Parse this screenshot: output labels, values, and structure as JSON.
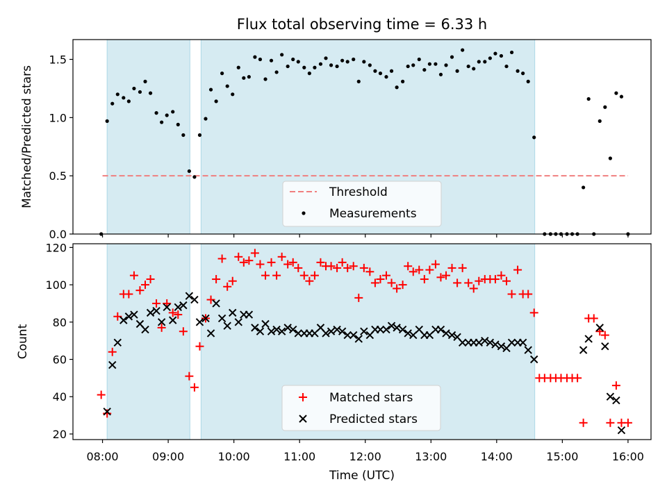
{
  "chart_data": [
    {
      "type": "scatter",
      "title": "Flux total observing time = 6.33 h",
      "ylabel": "Matched/Predicted stars",
      "xlabel": "",
      "xlim": [
        7.55,
        16.35
      ],
      "ylim": [
        0,
        1.67
      ],
      "xticks": [
        8,
        9,
        10,
        11,
        12,
        13,
        14,
        15,
        16
      ],
      "yticks": [
        0.0,
        0.5,
        1.0,
        1.5
      ],
      "ytick_labels": [
        "0.0",
        "0.5",
        "1.0",
        "1.5"
      ],
      "shaded_intervals": [
        [
          8.07,
          9.33
        ],
        [
          9.5,
          14.58
        ]
      ],
      "threshold": {
        "label": "Threshold",
        "value": 0.5,
        "x_range": [
          8.0,
          16.0
        ],
        "color": "#f07f7f"
      },
      "series": [
        {
          "name": "Measurements",
          "color": "#000000",
          "x": [
            7.98,
            8.07,
            8.15,
            8.23,
            8.32,
            8.4,
            8.48,
            8.57,
            8.65,
            8.73,
            8.82,
            8.9,
            8.98,
            9.07,
            9.15,
            9.23,
            9.32,
            9.4,
            9.48,
            9.57,
            9.65,
            9.73,
            9.82,
            9.9,
            9.98,
            10.07,
            10.15,
            10.23,
            10.32,
            10.4,
            10.48,
            10.57,
            10.65,
            10.73,
            10.82,
            10.9,
            10.98,
            11.07,
            11.15,
            11.23,
            11.32,
            11.4,
            11.48,
            11.57,
            11.65,
            11.73,
            11.82,
            11.9,
            11.98,
            12.07,
            12.15,
            12.23,
            12.32,
            12.4,
            12.48,
            12.57,
            12.65,
            12.73,
            12.82,
            12.9,
            12.98,
            13.07,
            13.15,
            13.23,
            13.32,
            13.4,
            13.48,
            13.57,
            13.65,
            13.73,
            13.82,
            13.9,
            13.98,
            14.07,
            14.15,
            14.23,
            14.32,
            14.4,
            14.48,
            14.57,
            14.73,
            14.82,
            14.9,
            14.98,
            15.07,
            15.15,
            15.23,
            15.32,
            15.4,
            15.48,
            15.57,
            15.65,
            15.73,
            15.82,
            15.9,
            16.0
          ],
          "values": [
            0.0,
            0.97,
            1.12,
            1.2,
            1.17,
            1.14,
            1.25,
            1.22,
            1.31,
            1.21,
            1.04,
            0.96,
            1.02,
            1.05,
            0.94,
            0.85,
            0.54,
            0.49,
            0.85,
            0.99,
            1.24,
            1.14,
            1.38,
            1.27,
            1.2,
            1.43,
            1.34,
            1.35,
            1.52,
            1.5,
            1.33,
            1.49,
            1.39,
            1.54,
            1.44,
            1.5,
            1.48,
            1.43,
            1.38,
            1.43,
            1.46,
            1.51,
            1.45,
            1.44,
            1.49,
            1.48,
            1.5,
            1.31,
            1.48,
            1.45,
            1.4,
            1.38,
            1.35,
            1.4,
            1.26,
            1.31,
            1.44,
            1.45,
            1.5,
            1.41,
            1.46,
            1.46,
            1.37,
            1.45,
            1.52,
            1.4,
            1.58,
            1.44,
            1.42,
            1.48,
            1.48,
            1.51,
            1.55,
            1.53,
            1.44,
            1.56,
            1.4,
            1.38,
            1.31,
            0.83,
            0.0,
            0.0,
            0.0,
            0.0,
            0.0,
            0.0,
            0.0,
            0.4,
            1.16,
            0.0,
            0.97,
            1.09,
            0.65,
            1.21,
            1.18,
            0.0
          ]
        }
      ],
      "legend": [
        "Threshold",
        "Measurements"
      ],
      "legend_position": "bottom-center"
    },
    {
      "type": "scatter",
      "title": "",
      "ylabel": "Count",
      "xlabel": "Time (UTC)",
      "xlim": [
        7.55,
        16.35
      ],
      "ylim": [
        17,
        122
      ],
      "xticks": [
        8,
        9,
        10,
        11,
        12,
        13,
        14,
        15,
        16
      ],
      "xtick_labels": [
        "08:00",
        "09:00",
        "10:00",
        "11:00",
        "12:00",
        "13:00",
        "14:00",
        "15:00",
        "16:00"
      ],
      "yticks": [
        20,
        40,
        60,
        80,
        100,
        120
      ],
      "ytick_labels": [
        "20",
        "40",
        "60",
        "80",
        "100",
        "120"
      ],
      "shaded_intervals": [
        [
          8.07,
          9.33
        ],
        [
          9.5,
          14.58
        ]
      ],
      "series": [
        {
          "name": "Matched stars",
          "marker": "+",
          "color": "#ff0000",
          "x": [
            7.98,
            8.07,
            8.15,
            8.23,
            8.32,
            8.4,
            8.48,
            8.57,
            8.65,
            8.73,
            8.82,
            8.9,
            8.98,
            9.07,
            9.15,
            9.23,
            9.32,
            9.4,
            9.48,
            9.57,
            9.65,
            9.73,
            9.82,
            9.9,
            9.98,
            10.07,
            10.15,
            10.23,
            10.32,
            10.4,
            10.48,
            10.57,
            10.65,
            10.73,
            10.82,
            10.9,
            10.98,
            11.07,
            11.15,
            11.23,
            11.32,
            11.4,
            11.48,
            11.57,
            11.65,
            11.73,
            11.82,
            11.9,
            11.98,
            12.07,
            12.15,
            12.23,
            12.32,
            12.4,
            12.48,
            12.57,
            12.65,
            12.73,
            12.82,
            12.9,
            12.98,
            13.07,
            13.15,
            13.23,
            13.32,
            13.4,
            13.48,
            13.57,
            13.65,
            13.73,
            13.82,
            13.9,
            13.98,
            14.07,
            14.15,
            14.23,
            14.32,
            14.4,
            14.48,
            14.57,
            14.65,
            14.73,
            14.82,
            14.9,
            14.98,
            15.07,
            15.15,
            15.23,
            15.32,
            15.4,
            15.48,
            15.57,
            15.65,
            15.73,
            15.82,
            15.9,
            16.0
          ],
          "values": [
            41,
            31,
            64,
            83,
            95,
            95,
            105,
            97,
            100,
            103,
            90,
            77,
            90,
            85,
            84,
            75,
            51,
            45,
            67,
            82,
            92,
            103,
            114,
            99,
            102,
            115,
            112,
            113,
            117,
            111,
            105,
            112,
            105,
            115,
            111,
            112,
            109,
            105,
            102,
            105,
            112,
            110,
            110,
            109,
            112,
            109,
            110,
            93,
            109,
            107,
            101,
            103,
            105,
            101,
            98,
            100,
            110,
            107,
            108,
            103,
            108,
            111,
            104,
            105,
            109,
            101,
            109,
            101,
            98,
            102,
            103,
            103,
            103,
            105,
            102,
            95,
            108,
            95,
            95,
            85,
            50,
            50,
            50,
            50,
            50,
            50,
            50,
            50,
            26,
            82,
            82,
            75,
            73,
            26,
            46,
            26,
            26
          ]
        },
        {
          "name": "Predicted stars",
          "marker": "x",
          "color": "#000000",
          "x": [
            8.07,
            8.15,
            8.23,
            8.32,
            8.4,
            8.48,
            8.57,
            8.65,
            8.73,
            8.82,
            8.9,
            8.98,
            9.07,
            9.15,
            9.23,
            9.32,
            9.4,
            9.48,
            9.57,
            9.65,
            9.73,
            9.82,
            9.9,
            9.98,
            10.07,
            10.15,
            10.23,
            10.32,
            10.4,
            10.48,
            10.57,
            10.65,
            10.73,
            10.82,
            10.9,
            10.98,
            11.07,
            11.15,
            11.23,
            11.32,
            11.4,
            11.48,
            11.57,
            11.65,
            11.73,
            11.82,
            11.9,
            11.98,
            12.07,
            12.15,
            12.23,
            12.32,
            12.4,
            12.48,
            12.57,
            12.65,
            12.73,
            12.82,
            12.9,
            12.98,
            13.07,
            13.15,
            13.23,
            13.32,
            13.4,
            13.48,
            13.57,
            13.65,
            13.73,
            13.82,
            13.9,
            13.98,
            14.07,
            14.15,
            14.23,
            14.32,
            14.4,
            14.48,
            14.57,
            15.32,
            15.4,
            15.57,
            15.65,
            15.73,
            15.82,
            15.9
          ],
          "values": [
            32,
            57,
            69,
            81,
            83,
            84,
            79,
            76,
            85,
            86,
            80,
            88,
            81,
            88,
            89,
            94,
            92,
            80,
            82,
            74,
            90,
            82,
            78,
            85,
            80,
            84,
            84,
            77,
            75,
            79,
            75,
            76,
            75,
            77,
            76,
            74,
            74,
            74,
            74,
            77,
            74,
            75,
            76,
            75,
            73,
            73,
            71,
            75,
            73,
            76,
            76,
            76,
            78,
            77,
            76,
            74,
            73,
            76,
            73,
            73,
            76,
            76,
            74,
            73,
            72,
            69,
            69,
            69,
            69,
            70,
            69,
            68,
            67,
            66,
            69,
            69,
            69,
            65,
            60,
            65,
            71,
            77,
            67,
            40,
            38,
            22
          ]
        }
      ],
      "legend": [
        "Matched stars",
        "Predicted stars"
      ],
      "legend_position": "bottom-center"
    }
  ]
}
